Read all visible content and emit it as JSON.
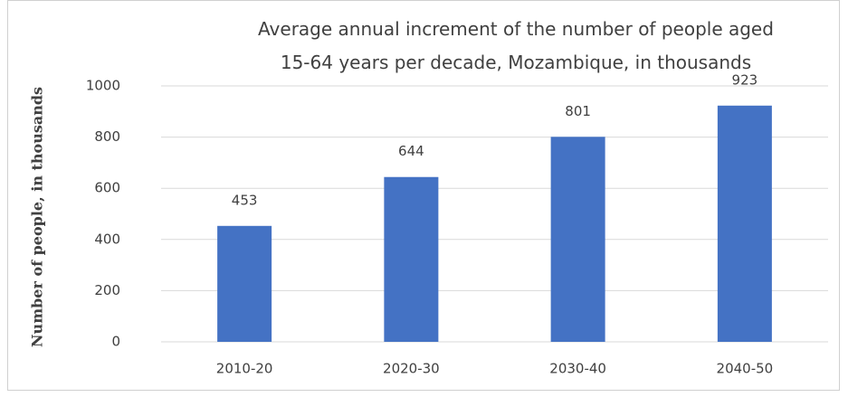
{
  "chart_data": {
    "type": "bar",
    "title": "Average annual increment of the number of people aged 15-64 years per decade, Mozambique, in thousands",
    "y_label": "Number of people, in thousands",
    "categories": [
      "2010-20",
      "2020-30",
      "2030-40",
      "2040-50"
    ],
    "values": [
      453,
      644,
      801,
      923
    ],
    "color": "#4472c4",
    "ylim": [
      0,
      1000
    ],
    "yticks": [
      0,
      200,
      400,
      600,
      800,
      1000
    ],
    "grid": true
  }
}
